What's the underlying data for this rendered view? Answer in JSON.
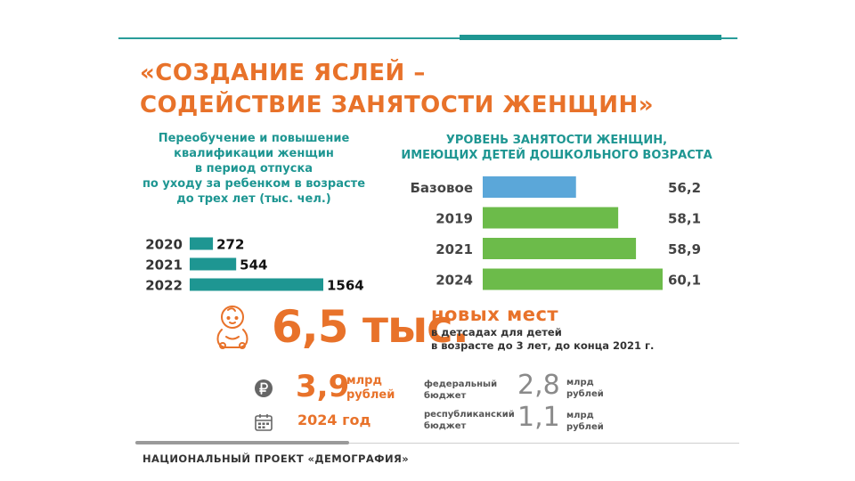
{
  "title": {
    "line1": "«СОЗДАНИЕ ЯСЛЕЙ –",
    "line2": "СОДЕЙСТВИЕ ЗАНЯТОСТИ ЖЕНЩИН»"
  },
  "colors": {
    "accent": "#e8722a",
    "teal": "#1e9692",
    "blue_bar": "#5ba7d9",
    "green_bar": "#6cbb4a",
    "gray_text": "#8a8a8a"
  },
  "chart_data": [
    {
      "type": "bar",
      "orientation": "horizontal",
      "title_lines": [
        "Переобучение и повышение",
        "квалификации женщин",
        "в период отпуска",
        "по уходу за ребенком в возрасте",
        "до трех лет (тыс. чел.)"
      ],
      "categories": [
        "2020",
        "2021",
        "2022"
      ],
      "values": [
        272,
        544,
        1564
      ],
      "value_labels": [
        "272",
        "544",
        "1564"
      ],
      "xlim": [
        0,
        1564
      ],
      "grid": false
    },
    {
      "type": "bar",
      "orientation": "horizontal",
      "title_lines": [
        "УРОВЕНЬ ЗАНЯТОСТИ ЖЕНЩИН,",
        "ИМЕЮЩИХ ДЕТЕЙ ДОШКОЛЬНОГО ВОЗРАСТА"
      ],
      "categories": [
        "Базовое",
        "2019",
        "2021",
        "2024"
      ],
      "values": [
        56.2,
        58.1,
        58.9,
        60.1
      ],
      "value_labels": [
        "56,2",
        "58,1",
        "58,9",
        "60,1"
      ],
      "xlim": [
        52,
        60.1
      ],
      "grid": false
    }
  ],
  "places": {
    "number": "6,5 тыс.",
    "headline": "новых мест",
    "line1": "в детсадах для детей",
    "line2": "в возрасте до 3 лет, до конца 2021 г."
  },
  "funding": {
    "total": "3,9",
    "unit_line1": "млрд",
    "unit_line2": "рублей",
    "year": "2024 год",
    "icons": [
      "ruble-icon",
      "calendar-icon"
    ],
    "federal": {
      "label_line1": "федеральный",
      "label_line2": "бюджет",
      "value": "2,8",
      "unit_line1": "млрд",
      "unit_line2": "рублей"
    },
    "republic": {
      "label_line1": "республиканский",
      "label_line2": "бюджет",
      "value": "1,1",
      "unit_line1": "млрд",
      "unit_line2": "рублей"
    }
  },
  "footer": "НАЦИОНАЛЬНЫЙ ПРОЕКТ «ДЕМОГРАФИЯ»"
}
